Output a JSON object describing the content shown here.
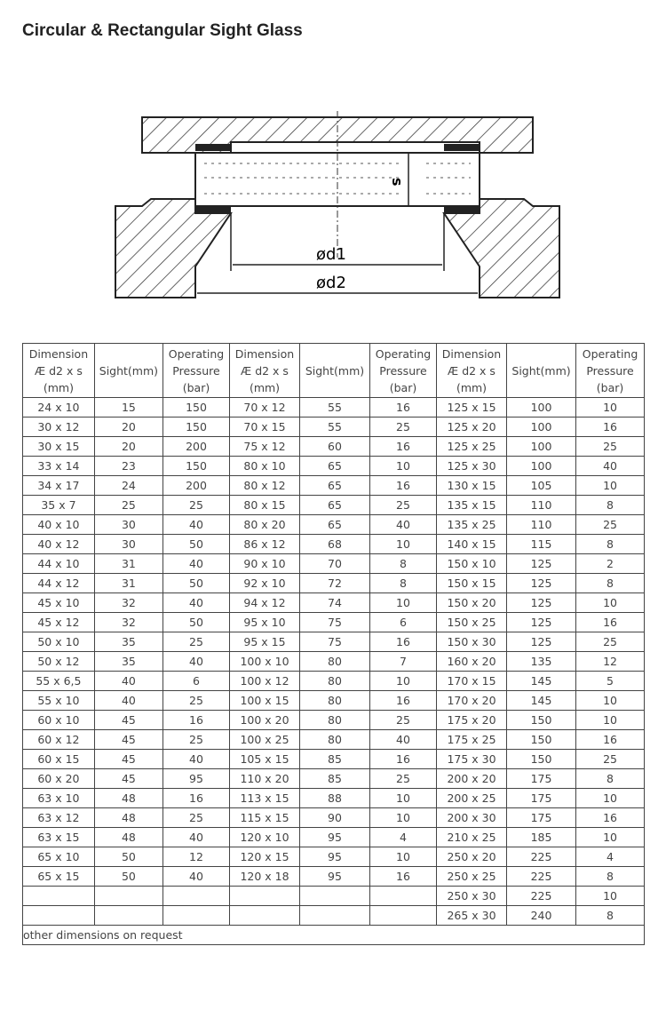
{
  "title": "Circular & Rectangular Sight Glass",
  "diagram": {
    "label_s": "s",
    "label_d1": "ød1",
    "label_d2": "ød2"
  },
  "table": {
    "headers": [
      [
        "Dimension",
        "Æ d2 x s",
        "(mm)"
      ],
      [
        "Sight(mm)"
      ],
      [
        "Operating",
        "Pressure",
        "(bar)"
      ],
      [
        "Dimension",
        "Æ d2 x s",
        "(mm)"
      ],
      [
        "Sight(mm)"
      ],
      [
        "Operating",
        "Pressure",
        "(bar)"
      ],
      [
        "Dimension",
        "Æ d2 x s",
        "(mm)"
      ],
      [
        "Sight(mm)"
      ],
      [
        "Operating",
        "Pressure",
        "(bar)"
      ]
    ],
    "rows": [
      [
        "24 x 10",
        "15",
        "150",
        "70 x 12",
        "55",
        "16",
        "125 x 15",
        "100",
        "10"
      ],
      [
        "30 x 12",
        "20",
        "150",
        "70 x 15",
        "55",
        "25",
        "125 x 20",
        "100",
        "16"
      ],
      [
        "30 x 15",
        "20",
        "200",
        "75 x 12",
        "60",
        "16",
        "125 x 25",
        "100",
        "25"
      ],
      [
        "33 x 14",
        "23",
        "150",
        "80 x 10",
        "65",
        "10",
        "125 x 30",
        "100",
        "40"
      ],
      [
        "34 x 17",
        "24",
        "200",
        "80 x 12",
        "65",
        "16",
        "130 x 15",
        "105",
        "10"
      ],
      [
        "35 x 7",
        "25",
        "25",
        "80 x 15",
        "65",
        "25",
        "135 x 15",
        "110",
        "8"
      ],
      [
        "40 x 10",
        "30",
        "40",
        "80 x 20",
        "65",
        "40",
        "135 x 25",
        "110",
        "25"
      ],
      [
        "40 x 12",
        "30",
        "50",
        "86 x 12",
        "68",
        "10",
        "140 x 15",
        "115",
        "8"
      ],
      [
        "44 x 10",
        "31",
        "40",
        "90 x 10",
        "70",
        "8",
        "150 x 10",
        "125",
        "2"
      ],
      [
        "44 x 12",
        "31",
        "50",
        "92 x 10",
        "72",
        "8",
        "150 x 15",
        "125",
        "8"
      ],
      [
        "45 x 10",
        "32",
        "40",
        "94 x 12",
        "74",
        "10",
        "150 x 20",
        "125",
        "10"
      ],
      [
        "45 x 12",
        "32",
        "50",
        "95 x 10",
        "75",
        "6",
        "150 x 25",
        "125",
        "16"
      ],
      [
        "50 x 10",
        "35",
        "25",
        "95 x 15",
        "75",
        "16",
        "150 x 30",
        "125",
        "25"
      ],
      [
        "50 x 12",
        "35",
        "40",
        "100 x 10",
        "80",
        "7",
        "160 x 20",
        "135",
        "12"
      ],
      [
        "55 x 6,5",
        "40",
        "6",
        "100 x 12",
        "80",
        "10",
        "170 x 15",
        "145",
        "5"
      ],
      [
        "55 x 10",
        "40",
        "25",
        "100 x 15",
        "80",
        "16",
        "170 x 20",
        "145",
        "10"
      ],
      [
        "60 x 10",
        "45",
        "16",
        "100 x 20",
        "80",
        "25",
        "175 x 20",
        "150",
        "10"
      ],
      [
        "60 x 12",
        "45",
        "25",
        "100 x 25",
        "80",
        "40",
        "175 x 25",
        "150",
        "16"
      ],
      [
        "60 x 15",
        "45",
        "40",
        "105 x 15",
        "85",
        "16",
        "175 x 30",
        "150",
        "25"
      ],
      [
        "60 x 20",
        "45",
        "95",
        "110 x 20",
        "85",
        "25",
        "200 x 20",
        "175",
        "8"
      ],
      [
        "63 x 10",
        "48",
        "16",
        "113 x 15",
        "88",
        "10",
        "200 x 25",
        "175",
        "10"
      ],
      [
        "63 x 12",
        "48",
        "25",
        "115 x 15",
        "90",
        "10",
        "200 x 30",
        "175",
        "16"
      ],
      [
        "63 x 15",
        "48",
        "40",
        "120 x 10",
        "95",
        "4",
        "210 x 25",
        "185",
        "10"
      ],
      [
        "65 x 10",
        "50",
        "12",
        "120 x 15",
        "95",
        "10",
        "250 x 20",
        "225",
        "4"
      ],
      [
        "65 x 15",
        "50",
        "40",
        "120 x 18",
        "95",
        "16",
        "250 x 25",
        "225",
        "8"
      ],
      [
        "",
        "",
        "",
        "",
        "",
        "",
        "250 x 30",
        "225",
        "10"
      ],
      [
        "",
        "",
        "",
        "",
        "",
        "",
        "265 x 30",
        "240",
        "8"
      ]
    ],
    "footer": "other dimensions on request"
  }
}
